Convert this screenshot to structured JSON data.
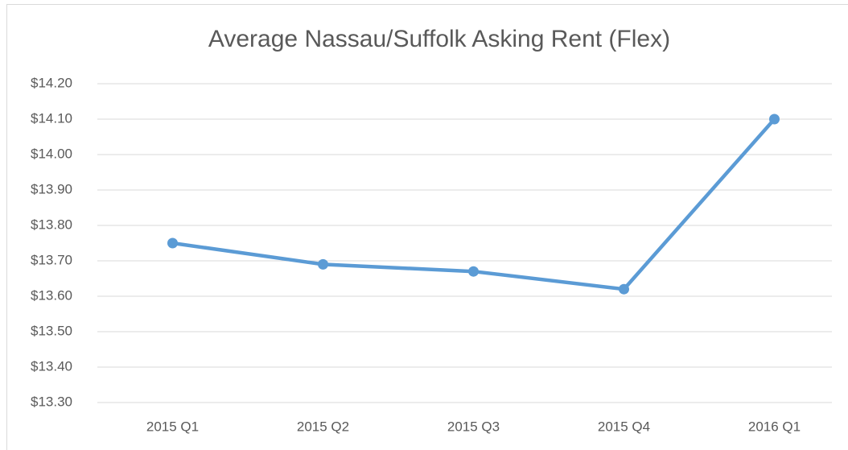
{
  "chart_data": {
    "type": "line",
    "title": "Average Nassau/Suffolk Asking Rent (Flex)",
    "categories": [
      "2015 Q1",
      "2015 Q2",
      "2015 Q3",
      "2015 Q4",
      "2016 Q1"
    ],
    "values": [
      13.75,
      13.69,
      13.67,
      13.62,
      14.1
    ],
    "color": "#5b9bd5",
    "ylim": [
      13.3,
      14.2
    ],
    "yticks": [
      {
        "value": 13.3,
        "label": "$13.30"
      },
      {
        "value": 13.4,
        "label": "$13.40"
      },
      {
        "value": 13.5,
        "label": "$13.50"
      },
      {
        "value": 13.6,
        "label": "$13.60"
      },
      {
        "value": 13.7,
        "label": "$13.70"
      },
      {
        "value": 13.8,
        "label": "$13.80"
      },
      {
        "value": 13.9,
        "label": "$13.90"
      },
      {
        "value": 14.0,
        "label": "$14.00"
      },
      {
        "value": 14.1,
        "label": "$14.10"
      },
      {
        "value": 14.2,
        "label": "$14.20"
      }
    ],
    "grid": true
  }
}
